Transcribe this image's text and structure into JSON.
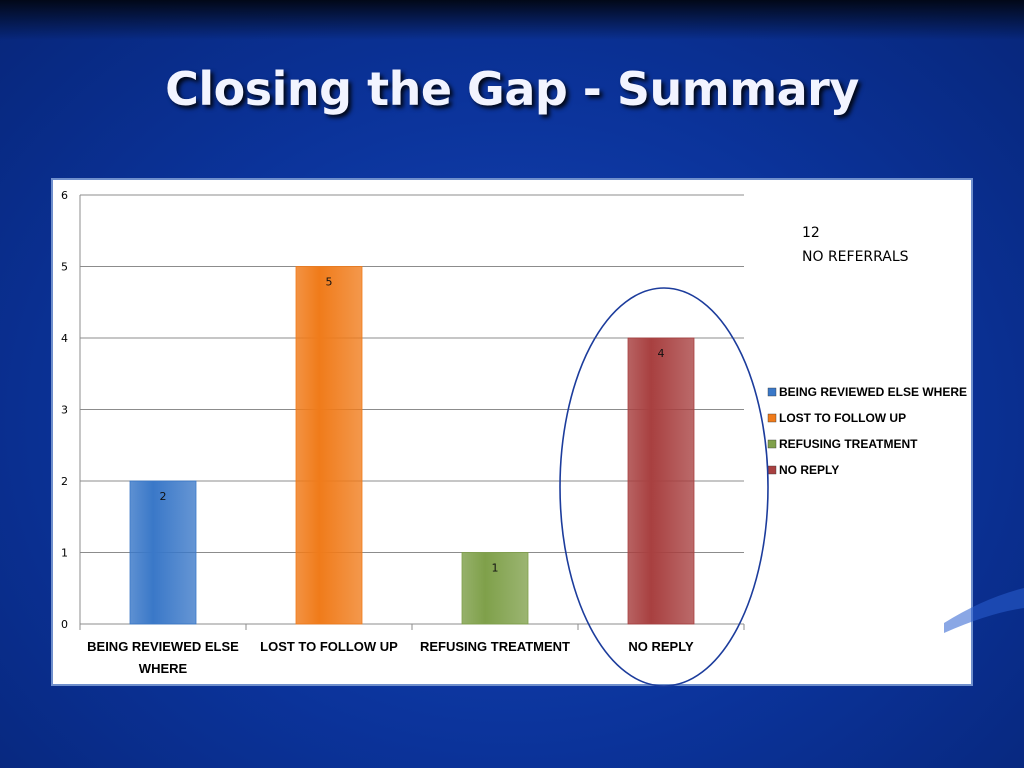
{
  "slide": {
    "title": "Closing the Gap - Summary"
  },
  "annotation": {
    "line1": "12",
    "line2": "NO REFERRALS"
  },
  "colors": {
    "background": "#0b339a",
    "highlight_ellipse": "#1c3c9c"
  },
  "chart_data": {
    "type": "bar",
    "title": "",
    "xlabel": "",
    "ylabel": "",
    "ylim": [
      0,
      6
    ],
    "yticks": [
      0,
      1,
      2,
      3,
      4,
      5,
      6
    ],
    "grid": true,
    "legend_position": "right",
    "categories": [
      "BEING REVIEWED ELSE WHERE",
      "LOST TO FOLLOW UP",
      "REFUSING TREATMENT",
      "NO REPLY"
    ],
    "category_label_lines": [
      [
        "BEING REVIEWED ELSE",
        "WHERE"
      ],
      [
        "LOST TO FOLLOW UP"
      ],
      [
        "REFUSING TREATMENT"
      ],
      [
        "NO REPLY"
      ]
    ],
    "values": [
      2,
      5,
      1,
      4
    ],
    "data_labels": [
      "2",
      "5",
      "1",
      "4"
    ],
    "bar_colors": [
      "#3a78c8",
      "#f07b1a",
      "#7fa04a",
      "#a84040"
    ],
    "legend": [
      {
        "label": "BEING REVIEWED ELSE WHERE",
        "color": "#3a78c8"
      },
      {
        "label": "LOST TO FOLLOW UP",
        "color": "#f07b1a"
      },
      {
        "label": "REFUSING TREATMENT",
        "color": "#7fa04a"
      },
      {
        "label": "NO REPLY",
        "color": "#a84040"
      }
    ],
    "highlighted_category": "NO REPLY"
  }
}
